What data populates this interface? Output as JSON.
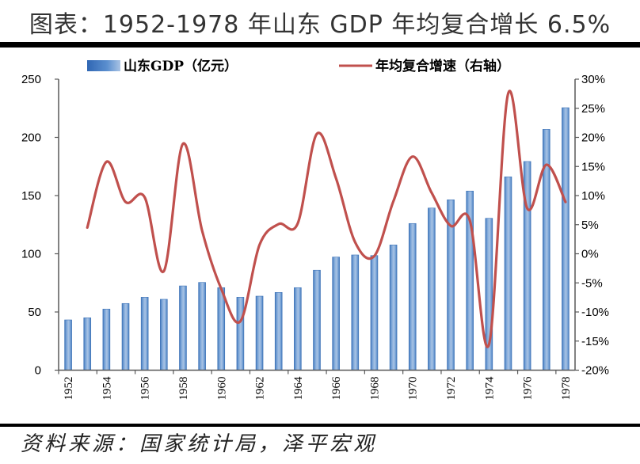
{
  "header": {
    "title": "图表：1952-1978 年山东 GDP 年均复合增长 6.5%"
  },
  "footer": {
    "source": "资料来源：国家统计局，泽平宏观"
  },
  "colors": {
    "bar": "#5b8fcf",
    "bar_edge": "#3f74b8",
    "bar_light": "#a9c3e4",
    "line": "#c0504d",
    "axis": "#595959"
  },
  "chart_data": {
    "type": "bar+line",
    "title": "图表：1952-1978 年山东 GDP 年均复合增长 6.5%",
    "categories": [
      "1952",
      "1953",
      "1954",
      "1955",
      "1956",
      "1957",
      "1958",
      "1959",
      "1960",
      "1961",
      "1962",
      "1963",
      "1964",
      "1965",
      "1966",
      "1967",
      "1968",
      "1969",
      "1970",
      "1971",
      "1972",
      "1973",
      "1974",
      "1975",
      "1976",
      "1977",
      "1978"
    ],
    "xtick_labels": [
      "1952",
      "1954",
      "1956",
      "1958",
      "1960",
      "1962",
      "1964",
      "1966",
      "1968",
      "1970",
      "1972",
      "1974",
      "1976",
      "1978"
    ],
    "series": [
      {
        "name": "山东GDP（亿元）",
        "type": "bar",
        "axis": "left",
        "values": [
          43.2,
          45.0,
          52.5,
          57.3,
          62.7,
          60.9,
          72.4,
          75.4,
          70.9,
          62.7,
          63.6,
          66.8,
          70.9,
          85.9,
          97.2,
          99.0,
          98.5,
          107.6,
          126.0,
          139.3,
          146.4,
          153.9,
          130.5,
          166.1,
          179.3,
          206.9,
          225.5
        ]
      },
      {
        "name": "年均复合增速（右轴）",
        "type": "line",
        "axis": "right",
        "values": [
          null,
          4.5,
          15.8,
          8.9,
          9.7,
          -3.0,
          18.9,
          4.0,
          -6.0,
          -11.6,
          1.5,
          5.1,
          5.2,
          20.6,
          13.0,
          2.0,
          -0.4,
          9.0,
          16.7,
          10.5,
          4.8,
          5.7,
          -15.6,
          27.5,
          7.8,
          15.3,
          8.9
        ]
      }
    ],
    "left_axis": {
      "min": 0,
      "max": 250,
      "step": 50,
      "ticks": [
        "0",
        "50",
        "100",
        "150",
        "200",
        "250"
      ]
    },
    "right_axis": {
      "min": -20,
      "max": 30,
      "step": 5,
      "ticks": [
        "-20%",
        "-15%",
        "-10%",
        "-5%",
        "0%",
        "5%",
        "10%",
        "15%",
        "20%",
        "25%",
        "30%"
      ]
    },
    "xlabel": "",
    "ylabel": "",
    "grid": false,
    "legend": {
      "placement": "top",
      "entries": [
        "山东GDP（亿元）",
        "年均复合增速（右轴）"
      ]
    }
  }
}
